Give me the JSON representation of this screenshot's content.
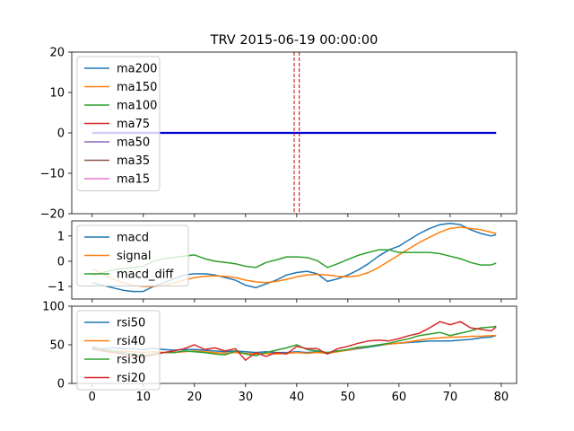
{
  "chart_data": [
    {
      "type": "line",
      "title": "TRV 2015-06-19 00:00:00",
      "xlim": [
        -4,
        83
      ],
      "ylim": [
        -20,
        20
      ],
      "yticks": [
        -20,
        -10,
        0,
        10,
        20
      ],
      "xticks": [
        0,
        10,
        20,
        30,
        40,
        50,
        60,
        70,
        80
      ],
      "show_xtick_labels": false,
      "vlines": [
        39.5,
        40.5
      ],
      "vline_color": "#cc0000",
      "legend_position": "upper left",
      "legend": [
        "ma200",
        "ma150",
        "ma100",
        "ma75",
        "ma50",
        "ma35",
        "ma15"
      ],
      "series": [
        {
          "name": "ma200",
          "color": "#1f77b4",
          "values": []
        },
        {
          "name": "ma150",
          "color": "#ff7f0e",
          "values": []
        },
        {
          "name": "ma100",
          "color": "#2ca02c",
          "values": []
        },
        {
          "name": "ma75",
          "color": "#d62728",
          "values": []
        },
        {
          "name": "ma50",
          "color": "#9467bd",
          "values": []
        },
        {
          "name": "ma35",
          "color": "#8c564b",
          "values": []
        },
        {
          "name": "ma15",
          "color": "#e377c2",
          "values": []
        },
        {
          "name": "",
          "color": "#0000dd",
          "x_range": [
            0,
            79
          ],
          "constant": 0
        }
      ]
    },
    {
      "type": "line",
      "xlim": [
        -4,
        83
      ],
      "ylim": [
        -1.5,
        1.6
      ],
      "yticks": [
        -1,
        0,
        1
      ],
      "xticks": [
        0,
        10,
        20,
        30,
        40,
        50,
        60,
        70,
        80
      ],
      "show_xtick_labels": false,
      "legend_position": "upper left",
      "legend": [
        "macd",
        "signal",
        "macd_diff"
      ],
      "x": [
        0,
        2,
        4,
        6,
        8,
        10,
        12,
        14,
        16,
        18,
        20,
        22,
        24,
        26,
        28,
        30,
        32,
        34,
        36,
        38,
        40,
        42,
        44,
        46,
        48,
        50,
        52,
        54,
        56,
        58,
        60,
        62,
        64,
        66,
        68,
        70,
        72,
        74,
        76,
        78,
        79
      ],
      "series": [
        {
          "name": "macd",
          "color": "#1f77b4",
          "values": [
            -0.85,
            -0.95,
            -1.05,
            -1.15,
            -1.2,
            -1.2,
            -1.0,
            -0.85,
            -0.7,
            -0.55,
            -0.5,
            -0.5,
            -0.55,
            -0.65,
            -0.75,
            -0.95,
            -1.05,
            -0.9,
            -0.75,
            -0.55,
            -0.45,
            -0.4,
            -0.5,
            -0.8,
            -0.7,
            -0.55,
            -0.35,
            -0.1,
            0.2,
            0.45,
            0.6,
            0.85,
            1.1,
            1.3,
            1.45,
            1.5,
            1.45,
            1.25,
            1.1,
            1.0,
            1.05
          ]
        },
        {
          "name": "signal",
          "color": "#ff7f0e",
          "values": [
            -0.3,
            -0.5,
            -0.7,
            -0.85,
            -0.95,
            -1.0,
            -1.0,
            -0.95,
            -0.85,
            -0.75,
            -0.65,
            -0.6,
            -0.58,
            -0.6,
            -0.65,
            -0.75,
            -0.82,
            -0.85,
            -0.8,
            -0.72,
            -0.62,
            -0.55,
            -0.52,
            -0.55,
            -0.6,
            -0.62,
            -0.58,
            -0.45,
            -0.25,
            0.0,
            0.25,
            0.5,
            0.75,
            0.95,
            1.15,
            1.3,
            1.35,
            1.3,
            1.25,
            1.15,
            1.1
          ]
        },
        {
          "name": "macd_diff",
          "color": "#2ca02c",
          "values": [
            -0.55,
            -0.45,
            -0.35,
            -0.3,
            -0.25,
            -0.2,
            0.0,
            0.1,
            0.15,
            0.2,
            0.25,
            0.1,
            0.0,
            -0.05,
            -0.1,
            -0.2,
            -0.25,
            -0.05,
            0.05,
            0.17,
            0.17,
            0.15,
            0.02,
            -0.25,
            -0.1,
            0.07,
            0.23,
            0.35,
            0.45,
            0.45,
            0.35,
            0.35,
            0.35,
            0.35,
            0.3,
            0.2,
            0.1,
            -0.05,
            -0.15,
            -0.15,
            -0.08
          ]
        }
      ]
    },
    {
      "type": "line",
      "xlim": [
        -4,
        83
      ],
      "ylim": [
        0,
        100
      ],
      "yticks": [
        0,
        50,
        100
      ],
      "xticks": [
        0,
        10,
        20,
        30,
        40,
        50,
        60,
        70,
        80
      ],
      "show_xtick_labels": true,
      "legend_position": "upper left",
      "legend": [
        "rsi50",
        "rsi40",
        "rsi30",
        "rsi20"
      ],
      "x": [
        0,
        2,
        4,
        6,
        8,
        10,
        12,
        14,
        16,
        18,
        20,
        22,
        24,
        26,
        28,
        30,
        32,
        34,
        36,
        38,
        40,
        42,
        44,
        46,
        48,
        50,
        52,
        54,
        56,
        58,
        60,
        62,
        64,
        66,
        68,
        70,
        72,
        74,
        76,
        78,
        79
      ],
      "series": [
        {
          "name": "rsi50",
          "color": "#1f77b4",
          "values": [
            46,
            45,
            46,
            45,
            45,
            44,
            45,
            44,
            43,
            44,
            44,
            43,
            42,
            41,
            42,
            41,
            40,
            41,
            40,
            40,
            41,
            40,
            41,
            40,
            42,
            43,
            45,
            47,
            49,
            51,
            52,
            53,
            54,
            55,
            55,
            55,
            56,
            57,
            59,
            60,
            62
          ]
        },
        {
          "name": "rsi40",
          "color": "#ff7f0e",
          "values": [
            44,
            43,
            42,
            42,
            41,
            40,
            41,
            40,
            40,
            41,
            42,
            41,
            40,
            39,
            40,
            39,
            38,
            39,
            38,
            39,
            40,
            39,
            40,
            39,
            41,
            43,
            46,
            48,
            50,
            51,
            52,
            54,
            56,
            58,
            59,
            60,
            60,
            61,
            61,
            62,
            62
          ]
        },
        {
          "name": "rsi30",
          "color": "#2ca02c",
          "values": [
            48,
            44,
            42,
            40,
            38,
            36,
            38,
            40,
            40,
            42,
            41,
            40,
            38,
            37,
            42,
            38,
            36,
            40,
            43,
            46,
            50,
            44,
            42,
            40,
            42,
            44,
            47,
            48,
            50,
            52,
            55,
            58,
            62,
            64,
            66,
            62,
            65,
            68,
            72,
            73,
            74
          ]
        },
        {
          "name": "rsi20",
          "color": "#d62728",
          "values": [
            45,
            42,
            40,
            38,
            35,
            34,
            37,
            40,
            42,
            45,
            50,
            44,
            46,
            42,
            45,
            30,
            40,
            35,
            40,
            38,
            48,
            45,
            45,
            38,
            45,
            48,
            52,
            55,
            56,
            55,
            58,
            62,
            65,
            72,
            80,
            76,
            80,
            72,
            70,
            68,
            73
          ]
        }
      ]
    }
  ]
}
